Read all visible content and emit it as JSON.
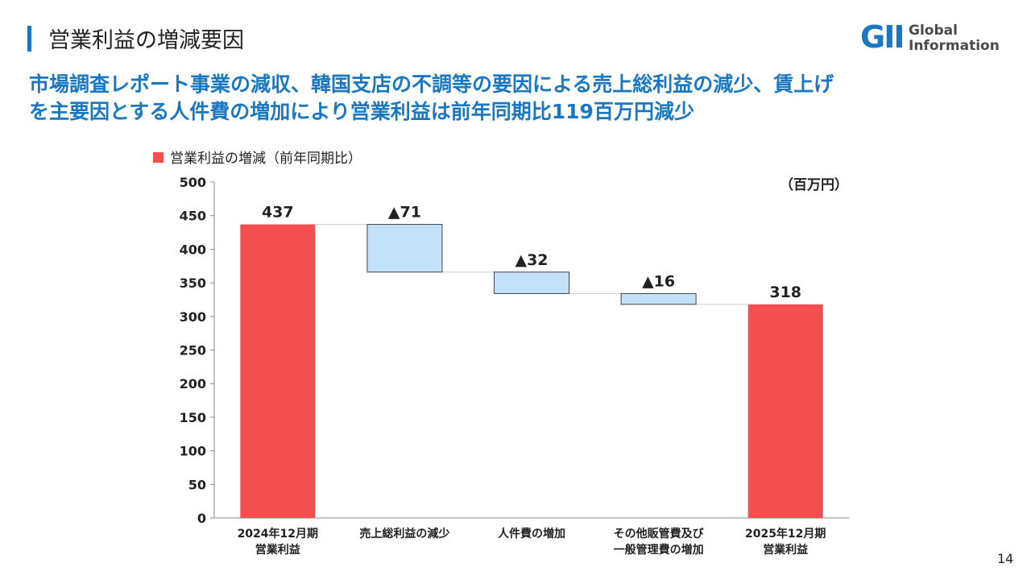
{
  "header": {
    "title": "営業利益の増減要因",
    "logo_mark": "GII",
    "logo_line1": "Global",
    "logo_line2": "Information"
  },
  "headline": {
    "line1": "市場調査レポート事業の減収、韓国支店の不調等の要因による売上総利益の減少、賃上げ",
    "line2": "を主要因とする人件費の増加により営業利益は前年同期比119百万円減少"
  },
  "page_number": "14",
  "colors": {
    "accent": "#1a78c2",
    "bar_total": "#f25050",
    "bar_delta": "#c2e2fa",
    "bar_delta_border": "#444444"
  },
  "chart_data": {
    "type": "bar",
    "subtype": "waterfall",
    "legend": "営業利益の増減（前年同期比）",
    "unit": "（百万円）",
    "ylim": [
      0,
      500
    ],
    "yticks": [
      0,
      50,
      100,
      150,
      200,
      250,
      300,
      350,
      400,
      450,
      500
    ],
    "grid": false,
    "bars": [
      {
        "label": [
          "2024年12月期",
          "営業利益"
        ],
        "kind": "total",
        "start": 0,
        "end": 437,
        "value_label": "437"
      },
      {
        "label": [
          "売上総利益の減少"
        ],
        "kind": "delta",
        "start": 437,
        "end": 366,
        "value_label": "▲71"
      },
      {
        "label": [
          "人件費の増加"
        ],
        "kind": "delta",
        "start": 366,
        "end": 334,
        "value_label": "▲32"
      },
      {
        "label": [
          "その他販管費及び",
          "一般管理費の増加"
        ],
        "kind": "delta",
        "start": 334,
        "end": 318,
        "value_label": "▲16"
      },
      {
        "label": [
          "2025年12月期",
          "営業利益"
        ],
        "kind": "total",
        "start": 0,
        "end": 318,
        "value_label": "318"
      }
    ]
  }
}
